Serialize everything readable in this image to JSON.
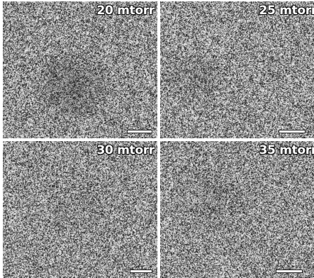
{
  "panels": [
    {
      "label": "20 mtorr"
    },
    {
      "label": "25 mtorr"
    },
    {
      "label": "30 mtorr"
    },
    {
      "label": "35 mtorr"
    }
  ]
}
